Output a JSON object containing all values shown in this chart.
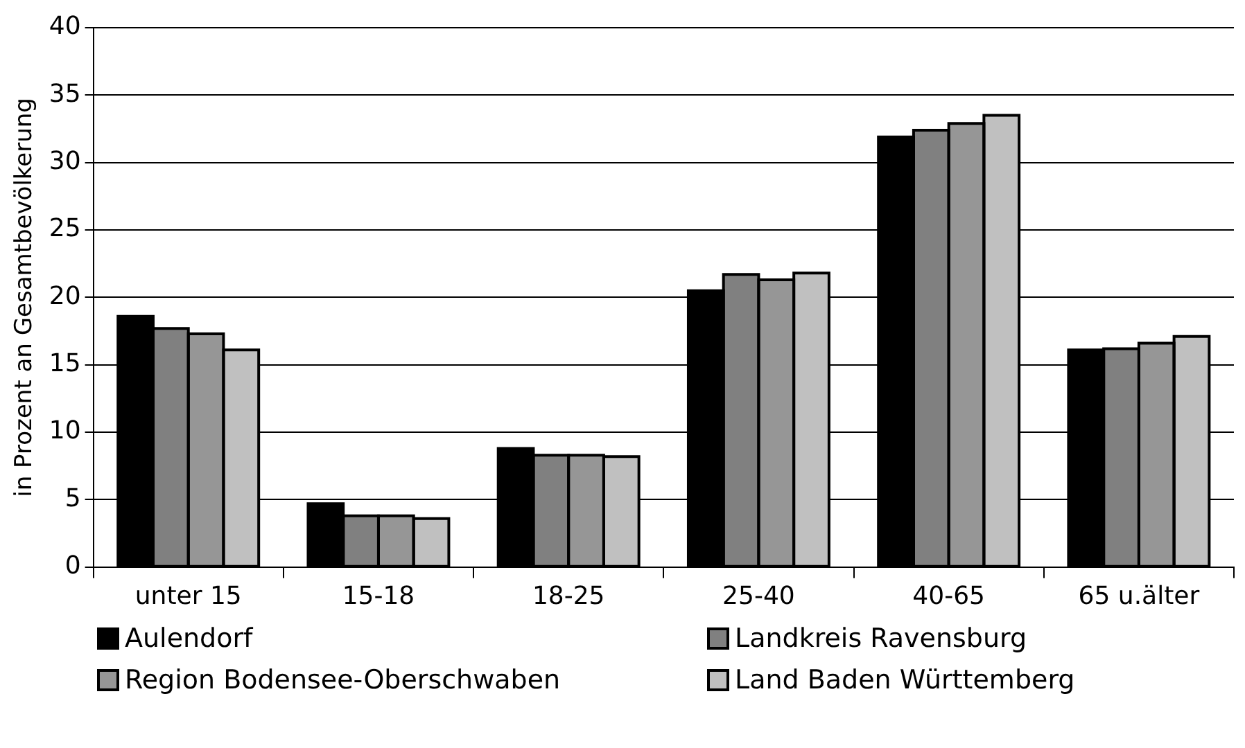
{
  "chart_data": {
    "type": "bar",
    "ylabel": "in Prozent an Gesamtbevölkerung",
    "categories": [
      "unter 15",
      "15-18",
      "18-25",
      "25-40",
      "40-65",
      "65 u.älter"
    ],
    "series": [
      {
        "name": "Aulendorf",
        "color": "#000000",
        "values": [
          18.6,
          4.7,
          8.8,
          20.5,
          31.9,
          16.1
        ]
      },
      {
        "name": "Landkreis Ravensburg",
        "color": "#808080",
        "values": [
          17.7,
          3.8,
          8.3,
          21.7,
          32.4,
          16.2
        ]
      },
      {
        "name": "Region Bodensee-Oberschwaben",
        "color": "#969696",
        "values": [
          17.3,
          3.8,
          8.3,
          21.3,
          32.9,
          16.6
        ]
      },
      {
        "name": "Land Baden Württemberg",
        "color": "#c0c0c0",
        "values": [
          16.1,
          3.6,
          8.2,
          21.8,
          33.5,
          17.1
        ]
      }
    ],
    "ylim": [
      0,
      40
    ],
    "yticks": [
      0,
      5,
      10,
      15,
      20,
      25,
      30,
      35,
      40
    ],
    "grid": "y",
    "legend": "bottom"
  }
}
